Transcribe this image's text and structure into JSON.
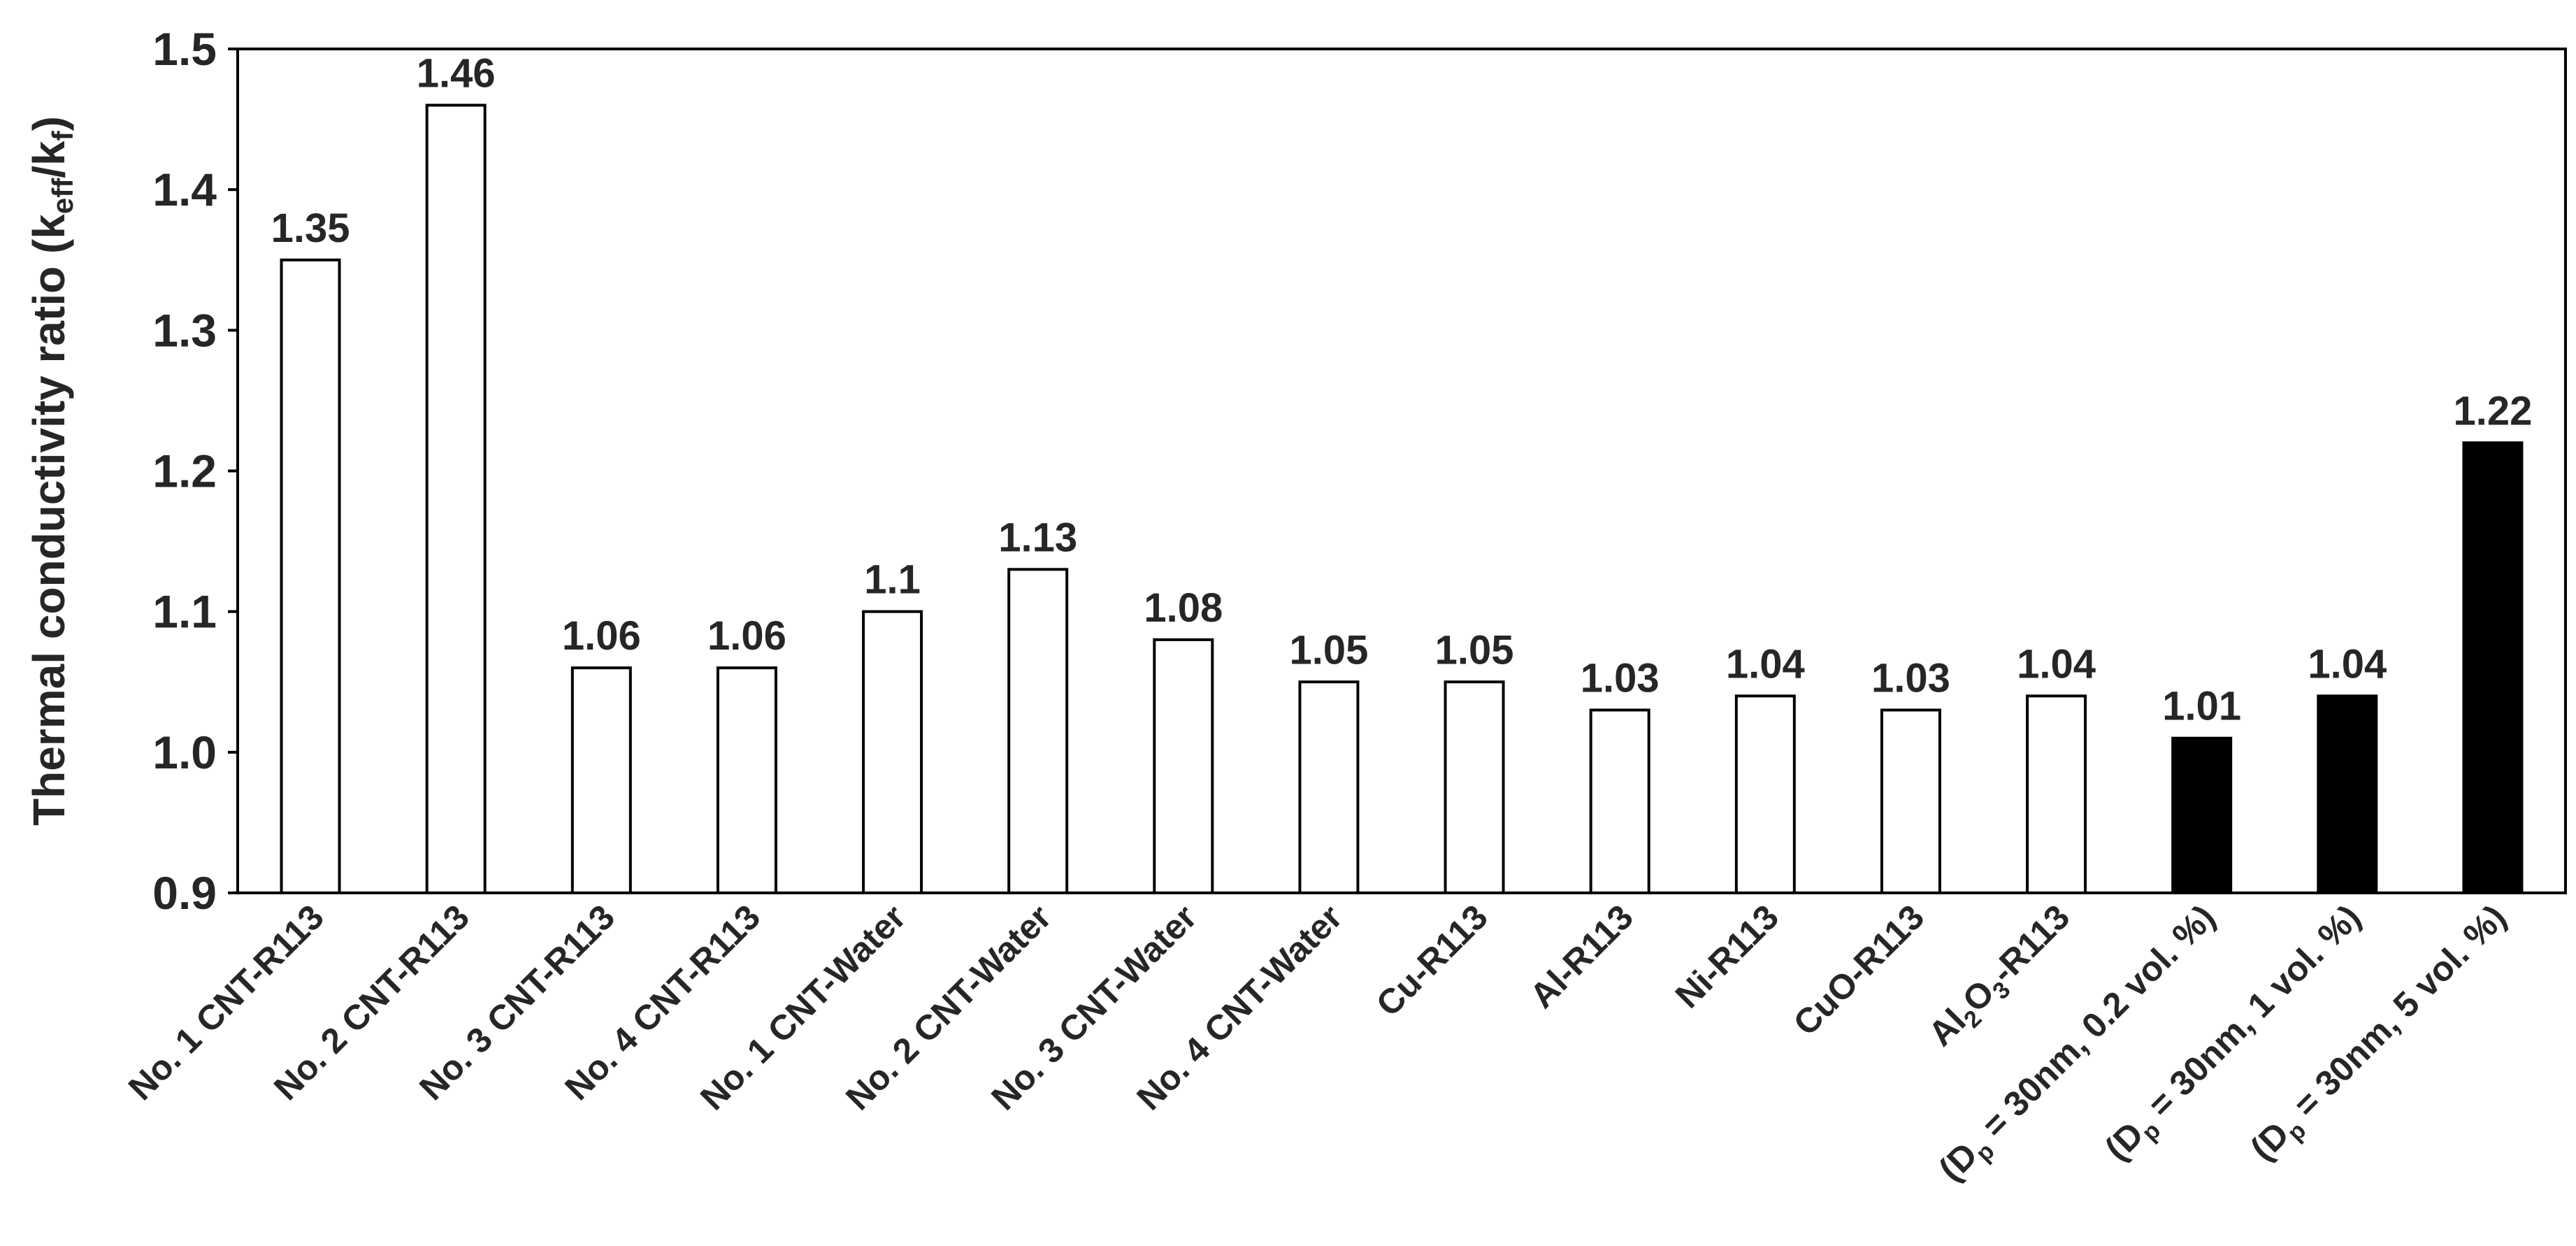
{
  "chart_data": {
    "type": "bar",
    "ylabel": "Thermal conductivity ratio (keff/kf)",
    "ylabel_parts": [
      {
        "text": "Thermal conductivity ratio (k"
      },
      {
        "text": "eff",
        "sub": true
      },
      {
        "text": "/k"
      },
      {
        "text": "f",
        "sub": true
      },
      {
        "text": ")"
      }
    ],
    "ylim": [
      0.9,
      1.5
    ],
    "yticks": [
      "0.9",
      "1.0",
      "1.1",
      "1.2",
      "1.3",
      "1.4",
      "1.5"
    ],
    "grid": false,
    "categories": [
      {
        "label": "No. 1 CNT-R113",
        "parts": [
          {
            "text": "No. 1 CNT-R113"
          }
        ],
        "value": 1.35,
        "data_label": "1.35",
        "fill": "#ffffff"
      },
      {
        "label": "No. 2 CNT-R113",
        "parts": [
          {
            "text": "No. 2 CNT-R113"
          }
        ],
        "value": 1.46,
        "data_label": "1.46",
        "fill": "#ffffff"
      },
      {
        "label": "No. 3 CNT-R113",
        "parts": [
          {
            "text": "No. 3 CNT-R113"
          }
        ],
        "value": 1.06,
        "data_label": "1.06",
        "fill": "#ffffff"
      },
      {
        "label": "No. 4 CNT-R113",
        "parts": [
          {
            "text": "No. 4 CNT-R113"
          }
        ],
        "value": 1.06,
        "data_label": "1.06",
        "fill": "#ffffff"
      },
      {
        "label": "No. 1 CNT-Water",
        "parts": [
          {
            "text": "No. 1 CNT-Water"
          }
        ],
        "value": 1.1,
        "data_label": "1.1",
        "fill": "#ffffff"
      },
      {
        "label": "No. 2 CNT-Water",
        "parts": [
          {
            "text": "No. 2 CNT-Water"
          }
        ],
        "value": 1.13,
        "data_label": "1.13",
        "fill": "#ffffff"
      },
      {
        "label": "No. 3 CNT-Water",
        "parts": [
          {
            "text": "No. 3 CNT-Water"
          }
        ],
        "value": 1.08,
        "data_label": "1.08",
        "fill": "#ffffff"
      },
      {
        "label": "No. 4 CNT-Water",
        "parts": [
          {
            "text": "No. 4 CNT-Water"
          }
        ],
        "value": 1.05,
        "data_label": "1.05",
        "fill": "#ffffff"
      },
      {
        "label": "Cu-R113",
        "parts": [
          {
            "text": "Cu-R113"
          }
        ],
        "value": 1.05,
        "data_label": "1.05",
        "fill": "#ffffff"
      },
      {
        "label": "Al-R113",
        "parts": [
          {
            "text": "Al-R113"
          }
        ],
        "value": 1.03,
        "data_label": "1.03",
        "fill": "#ffffff"
      },
      {
        "label": "Ni-R113",
        "parts": [
          {
            "text": "Ni-R113"
          }
        ],
        "value": 1.04,
        "data_label": "1.04",
        "fill": "#ffffff"
      },
      {
        "label": "CuO-R113",
        "parts": [
          {
            "text": "CuO-R113"
          }
        ],
        "value": 1.03,
        "data_label": "1.03",
        "fill": "#ffffff"
      },
      {
        "label": "Al2O3-R113",
        "parts": [
          {
            "text": "Al"
          },
          {
            "text": "2",
            "sub": true
          },
          {
            "text": "O"
          },
          {
            "text": "3",
            "sub": true
          },
          {
            "text": "-R113"
          }
        ],
        "value": 1.04,
        "data_label": "1.04",
        "fill": "#ffffff"
      },
      {
        "label": "(Dp = 30nm, 0.2 vol. %)",
        "parts": [
          {
            "text": "(D"
          },
          {
            "text": "p",
            "sub": true
          },
          {
            "text": " = 30nm, 0.2 vol. %)"
          }
        ],
        "value": 1.01,
        "data_label": "1.01",
        "fill": "#000000"
      },
      {
        "label": "(Dp = 30nm, 1 vol. %)",
        "parts": [
          {
            "text": "(D"
          },
          {
            "text": "p",
            "sub": true
          },
          {
            "text": " = 30nm, 1 vol. %)"
          }
        ],
        "value": 1.04,
        "data_label": "1.04",
        "fill": "#000000"
      },
      {
        "label": "(Dp = 30nm, 5 vol. %)",
        "parts": [
          {
            "text": "(D"
          },
          {
            "text": "p",
            "sub": true
          },
          {
            "text": " = 30nm, 5 vol. %)"
          }
        ],
        "value": 1.22,
        "data_label": "1.22",
        "fill": "#000000"
      }
    ],
    "colors": {
      "axis": "#000000",
      "bar_stroke": "#000000",
      "text": "#262626"
    }
  }
}
